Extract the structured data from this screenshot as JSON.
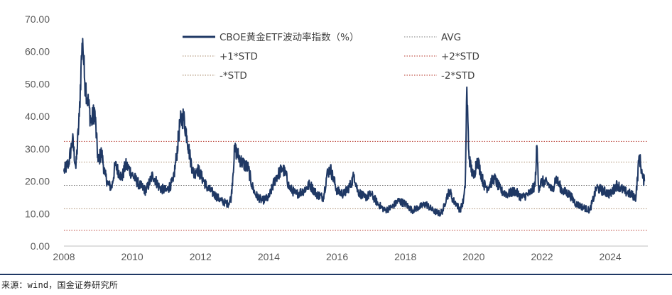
{
  "chart_data": {
    "type": "line",
    "title": "",
    "xlabel": "",
    "ylabel": "",
    "xlim": [
      2008,
      2025.1
    ],
    "ylim": [
      0,
      70
    ],
    "y_ticks": [
      "0.00",
      "10.00",
      "20.00",
      "30.00",
      "40.00",
      "50.00",
      "60.00",
      "70.00"
    ],
    "x_ticks": [
      "2008",
      "2010",
      "2012",
      "2014",
      "2016",
      "2018",
      "2020",
      "2022",
      "2024"
    ],
    "grid": false,
    "legend_position": "top",
    "series": [
      {
        "name": "CBOE黄金ETF波动率指数（%）",
        "color": "#1f3864",
        "x": [
          2008.0,
          2008.15,
          2008.25,
          2008.35,
          2008.45,
          2008.5,
          2008.55,
          2008.6,
          2008.7,
          2008.8,
          2008.9,
          2009.0,
          2009.1,
          2009.2,
          2009.3,
          2009.4,
          2009.5,
          2009.6,
          2009.7,
          2009.8,
          2009.9,
          2010.0,
          2010.2,
          2010.4,
          2010.6,
          2010.8,
          2011.0,
          2011.2,
          2011.3,
          2011.4,
          2011.5,
          2011.6,
          2011.7,
          2011.8,
          2011.9,
          2012.0,
          2012.2,
          2012.4,
          2012.6,
          2012.8,
          2012.9,
          2013.0,
          2013.2,
          2013.4,
          2013.5,
          2013.6,
          2013.8,
          2014.0,
          2014.2,
          2014.4,
          2014.5,
          2014.6,
          2014.8,
          2015.0,
          2015.2,
          2015.4,
          2015.6,
          2015.7,
          2015.8,
          2016.0,
          2016.2,
          2016.4,
          2016.5,
          2016.6,
          2016.8,
          2017.0,
          2017.2,
          2017.4,
          2017.6,
          2017.8,
          2018.0,
          2018.2,
          2018.4,
          2018.6,
          2018.8,
          2019.0,
          2019.1,
          2019.2,
          2019.3,
          2019.4,
          2019.5,
          2019.6,
          2019.7,
          2019.75,
          2019.8,
          2019.85,
          2019.9,
          2020.0,
          2020.1,
          2020.2,
          2020.3,
          2020.4,
          2020.6,
          2020.8,
          2021.0,
          2021.2,
          2021.4,
          2021.6,
          2021.7,
          2021.8,
          2021.85,
          2021.9,
          2022.0,
          2022.2,
          2022.3,
          2022.4,
          2022.6,
          2022.8,
          2023.0,
          2023.2,
          2023.4,
          2023.6,
          2023.8,
          2024.0,
          2024.2,
          2024.4,
          2024.6,
          2024.75,
          2024.85,
          2024.95,
          2025.0
        ],
        "values": [
          23.0,
          26.0,
          33.0,
          24.0,
          40.0,
          55.0,
          64.0,
          52.0,
          45.0,
          38.0,
          42.0,
          26.0,
          29.0,
          22.0,
          19.0,
          18.0,
          25.0,
          23.0,
          21.0,
          25.0,
          24.0,
          22.0,
          19.0,
          17.0,
          22.0,
          18.0,
          17.0,
          20.0,
          28.0,
          38.0,
          40.0,
          34.0,
          27.0,
          22.0,
          24.0,
          22.0,
          18.0,
          16.0,
          14.0,
          13.0,
          15.0,
          30.0,
          26.0,
          24.0,
          19.0,
          16.0,
          14.0,
          15.0,
          21.0,
          24.0,
          22.0,
          18.0,
          16.0,
          17.0,
          19.0,
          16.0,
          15.0,
          22.0,
          24.0,
          17.0,
          16.0,
          19.0,
          22.0,
          17.0,
          15.0,
          16.0,
          13.0,
          11.0,
          12.0,
          14.0,
          13.0,
          11.0,
          12.0,
          13.0,
          11.0,
          10.0,
          11.0,
          15.0,
          17.0,
          14.0,
          13.0,
          11.0,
          14.0,
          18.0,
          49.0,
          30.0,
          25.0,
          21.0,
          27.0,
          23.0,
          19.0,
          18.0,
          21.0,
          17.0,
          16.0,
          17.0,
          15.0,
          16.0,
          17.0,
          19.0,
          31.0,
          18.0,
          20.0,
          19.0,
          17.0,
          21.0,
          17.0,
          16.0,
          13.0,
          12.0,
          11.0,
          18.0,
          17.0,
          16.0,
          19.0,
          17.0,
          16.0,
          15.0,
          28.0,
          21.0,
          20.0
        ]
      }
    ],
    "reference_lines": [
      {
        "name": "AVG",
        "value": 18.7,
        "color": "#808080"
      },
      {
        "name": "+1*STD",
        "value": 25.9,
        "color": "#a88a6a"
      },
      {
        "name": "+2*STD",
        "value": 32.3,
        "color": "#b83a2e"
      },
      {
        "name": "-*STD",
        "value": 11.5,
        "color": "#a88a6a"
      },
      {
        "name": "-2*STD",
        "value": 4.9,
        "color": "#b83a2e"
      }
    ]
  },
  "source": "来源：wind，国金证券研究所"
}
